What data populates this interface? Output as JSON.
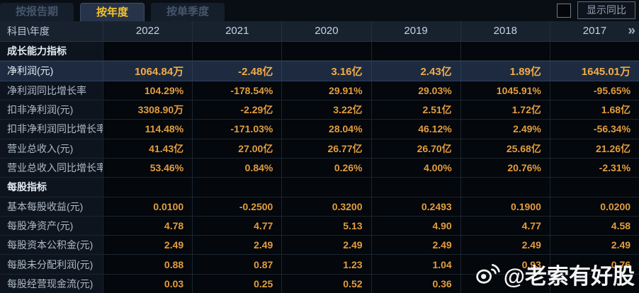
{
  "tabs": [
    {
      "label": "按报告期",
      "active": false
    },
    {
      "label": "按年度",
      "active": true
    },
    {
      "label": "按单季度",
      "active": false
    }
  ],
  "controls": {
    "show_yoy_label": "显示同比"
  },
  "table": {
    "corner_header": "科目\\年度",
    "year_columns": [
      "2022",
      "2021",
      "2020",
      "2019",
      "2018",
      "2017"
    ],
    "more_icon": "»",
    "rows": [
      {
        "type": "section",
        "label": "成长能力指标",
        "values": [
          "",
          "",
          "",
          "",
          "",
          ""
        ]
      },
      {
        "type": "highlight",
        "label": "净利润(元)",
        "values": [
          "1064.84万",
          "-2.48亿",
          "3.16亿",
          "2.43亿",
          "1.89亿",
          "1645.01万"
        ]
      },
      {
        "type": "data",
        "label": "净利润同比增长率",
        "values": [
          "104.29%",
          "-178.54%",
          "29.91%",
          "29.03%",
          "1045.91%",
          "-95.65%"
        ]
      },
      {
        "type": "data",
        "label": "扣非净利润(元)",
        "values": [
          "3308.90万",
          "-2.29亿",
          "3.22亿",
          "2.51亿",
          "1.72亿",
          "1.68亿"
        ]
      },
      {
        "type": "data",
        "label": "扣非净利润同比增长率",
        "values": [
          "114.48%",
          "-171.03%",
          "28.04%",
          "46.12%",
          "2.49%",
          "-56.34%"
        ]
      },
      {
        "type": "data",
        "label": "营业总收入(元)",
        "values": [
          "41.43亿",
          "27.00亿",
          "26.77亿",
          "26.70亿",
          "25.68亿",
          "21.26亿"
        ]
      },
      {
        "type": "data",
        "label": "营业总收入同比增长率",
        "values": [
          "53.46%",
          "0.84%",
          "0.26%",
          "4.00%",
          "20.76%",
          "-2.31%"
        ]
      },
      {
        "type": "section",
        "label": "每股指标",
        "values": [
          "",
          "",
          "",
          "",
          "",
          ""
        ]
      },
      {
        "type": "data",
        "label": "基本每股收益(元)",
        "values": [
          "0.0100",
          "-0.2500",
          "0.3200",
          "0.2493",
          "0.1900",
          "0.0200"
        ]
      },
      {
        "type": "data",
        "label": "每股净资产(元)",
        "values": [
          "4.78",
          "4.77",
          "5.13",
          "4.90",
          "4.77",
          "4.58"
        ]
      },
      {
        "type": "data",
        "label": "每股资本公积金(元)",
        "values": [
          "2.49",
          "2.49",
          "2.49",
          "2.49",
          "2.49",
          "2.49"
        ]
      },
      {
        "type": "data",
        "label": "每股未分配利润(元)",
        "values": [
          "0.88",
          "0.87",
          "1.23",
          "1.04",
          "0.93",
          "0.76"
        ]
      },
      {
        "type": "data",
        "label": "每股经营现金流(元)",
        "values": [
          "0.03",
          "0.25",
          "0.52",
          "0.36",
          "",
          ""
        ]
      }
    ]
  },
  "watermark": {
    "handle": "@老索有好股",
    "icon": "weibo-logo"
  },
  "colors": {
    "value_gold": "#e29d3e",
    "active_tab_gold": "#f4c42c",
    "highlight_row_bg": "#1d2a40",
    "header_bg": "#18222f"
  }
}
